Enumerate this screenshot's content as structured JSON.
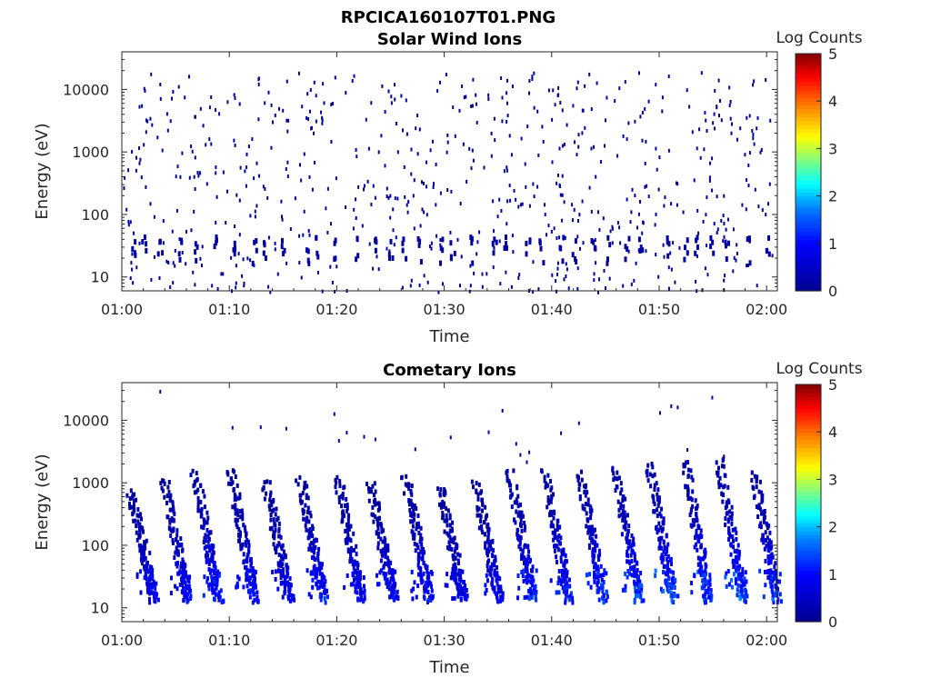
{
  "figure_title": "RPCICA160107T01.PNG",
  "colors": {
    "axis": "#262626",
    "colormap": [
      "#00008f",
      "#0000ff",
      "#0080ff",
      "#00ffff",
      "#80ff80",
      "#ffff00",
      "#ff8000",
      "#ff0000",
      "#800000"
    ]
  },
  "chart_data": [
    {
      "type": "heatmap",
      "title": "Solar Wind Ions",
      "xlabel": "Time",
      "ylabel": "Energy (eV)",
      "y_scale": "log",
      "x_range": [
        "01:00",
        "02:01"
      ],
      "y_range": [
        6,
        40000
      ],
      "x_ticks": [
        "01:00",
        "01:10",
        "01:20",
        "01:30",
        "01:40",
        "01:50",
        "02:00"
      ],
      "y_ticks": [
        "10",
        "100",
        "1000",
        "10000"
      ],
      "colorbar": {
        "label": "Log Counts",
        "range": [
          0,
          5
        ],
        "ticks": [
          "0",
          "1",
          "2",
          "3",
          "4",
          "5"
        ]
      },
      "description": "sparse noise; almost all counts at level ~0 (dark blue), clusters near 20-40 eV",
      "cells": [
        {
          "t": 1.0,
          "e": 30,
          "v": 0.1
        },
        {
          "t": 2.5,
          "e": 40,
          "v": 0.1
        },
        {
          "t": 4.2,
          "e": 25,
          "v": 0.1
        },
        {
          "t": 7.5,
          "e": 30,
          "v": 0.1
        },
        {
          "t": 11.5,
          "e": 28,
          "v": 0.1
        },
        {
          "t": 14.0,
          "e": 40,
          "v": 0.1
        },
        {
          "t": 17.8,
          "e": 25,
          "v": 0.1
        },
        {
          "t": 22.5,
          "e": 30,
          "v": 0.1
        },
        {
          "t": 27.5,
          "e": 22,
          "v": 0.1
        },
        {
          "t": 33.0,
          "e": 28,
          "v": 0.1
        },
        {
          "t": 36.5,
          "e": 30,
          "v": 0.1
        },
        {
          "t": 41.0,
          "e": 35,
          "v": 0.1
        },
        {
          "t": 44.5,
          "e": 28,
          "v": 0.1
        },
        {
          "t": 48.5,
          "e": 30,
          "v": 0.1
        },
        {
          "t": 53.0,
          "e": 30,
          "v": 0.1
        },
        {
          "t": 56.5,
          "e": 30,
          "v": 0.1
        },
        {
          "t": 59.0,
          "e": 25,
          "v": 0.1
        }
      ]
    },
    {
      "type": "heatmap",
      "title": "Cometary Ions",
      "xlabel": "Time",
      "ylabel": "Energy (eV)",
      "y_scale": "log",
      "x_range": [
        "01:00",
        "02:01"
      ],
      "y_range": [
        6,
        40000
      ],
      "x_ticks": [
        "01:00",
        "01:10",
        "01:20",
        "01:30",
        "01:40",
        "01:50",
        "02:00"
      ],
      "y_ticks": [
        "10",
        "100",
        "1000",
        "10000"
      ],
      "colorbar": {
        "label": "Log Counts",
        "range": [
          0,
          5
        ],
        "ticks": [
          "0",
          "1",
          "2",
          "3",
          "4",
          "5"
        ]
      },
      "description": "periodic energy-dispersed ion bursts roughly every 3.3 minutes, highest counts near 20-40 eV",
      "bursts": [
        {
          "t": 0.7,
          "peak_e": 800,
          "low_e": 15,
          "max_v": 1.0
        },
        {
          "t": 3.8,
          "peak_e": 1200,
          "low_e": 15,
          "max_v": 1.1
        },
        {
          "t": 6.7,
          "peak_e": 1500,
          "low_e": 15,
          "max_v": 1.3
        },
        {
          "t": 10.0,
          "peak_e": 1700,
          "low_e": 15,
          "max_v": 1.2
        },
        {
          "t": 13.3,
          "peak_e": 1000,
          "low_e": 15,
          "max_v": 1.0
        },
        {
          "t": 16.5,
          "peak_e": 1200,
          "low_e": 15,
          "max_v": 1.3
        },
        {
          "t": 20.0,
          "peak_e": 1200,
          "low_e": 15,
          "max_v": 1.1
        },
        {
          "t": 23.0,
          "peak_e": 1000,
          "low_e": 15,
          "max_v": 1.1
        },
        {
          "t": 26.3,
          "peak_e": 1300,
          "low_e": 15,
          "max_v": 1.2
        },
        {
          "t": 29.5,
          "peak_e": 900,
          "low_e": 15,
          "max_v": 1.0
        },
        {
          "t": 32.8,
          "peak_e": 1000,
          "low_e": 15,
          "max_v": 1.1
        },
        {
          "t": 36.0,
          "peak_e": 1500,
          "low_e": 15,
          "max_v": 1.4
        },
        {
          "t": 39.3,
          "peak_e": 1500,
          "low_e": 15,
          "max_v": 1.4
        },
        {
          "t": 42.5,
          "peak_e": 1500,
          "low_e": 15,
          "max_v": 1.5
        },
        {
          "t": 45.8,
          "peak_e": 1700,
          "low_e": 15,
          "max_v": 1.6
        },
        {
          "t": 49.0,
          "peak_e": 1900,
          "low_e": 15,
          "max_v": 1.7
        },
        {
          "t": 52.3,
          "peak_e": 2300,
          "low_e": 15,
          "max_v": 1.6
        },
        {
          "t": 55.5,
          "peak_e": 2400,
          "low_e": 15,
          "max_v": 1.7
        },
        {
          "t": 58.7,
          "peak_e": 1500,
          "low_e": 15,
          "max_v": 1.5
        }
      ]
    }
  ]
}
